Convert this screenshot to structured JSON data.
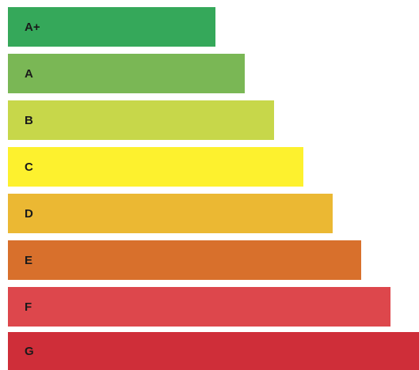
{
  "energy_scale": {
    "classes": [
      {
        "label": "A+",
        "color": "#35a85a"
      },
      {
        "label": "A",
        "color": "#7ab755"
      },
      {
        "label": "B",
        "color": "#c7d74a"
      },
      {
        "label": "C",
        "color": "#fdf12e"
      },
      {
        "label": "D",
        "color": "#ebb833"
      },
      {
        "label": "E",
        "color": "#d8702c"
      },
      {
        "label": "F",
        "color": "#dd474c"
      },
      {
        "label": "G",
        "color": "#cf2e39"
      }
    ]
  }
}
